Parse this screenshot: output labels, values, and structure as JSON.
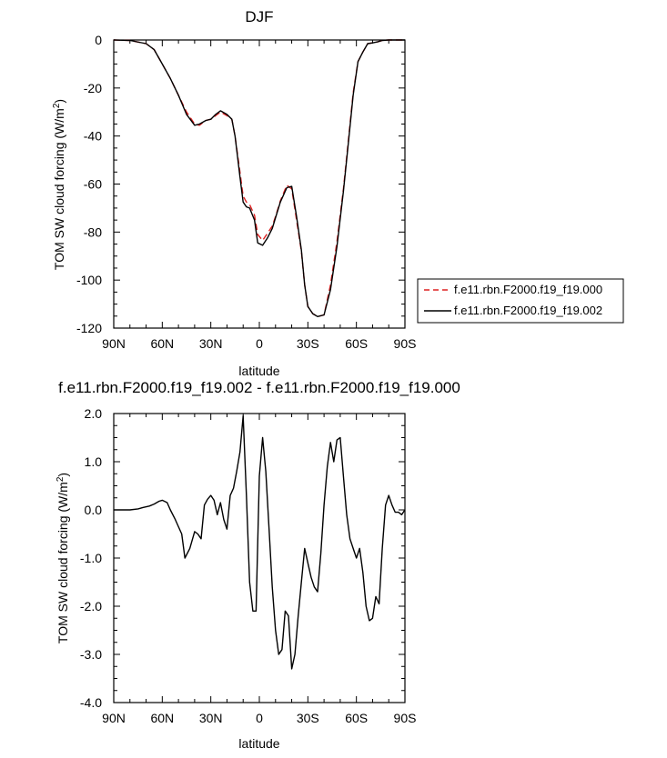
{
  "chart_data": [
    {
      "type": "line",
      "title": "DJF",
      "xlabel": "latitude",
      "ylabel": "TOM SW cloud forcing (W/m",
      "ylabel_sup": "2",
      "ylabel_close": ")",
      "xlim": [
        90,
        -90
      ],
      "ylim": [
        -120,
        0
      ],
      "xticks": [
        {
          "value": 90,
          "label": "90N"
        },
        {
          "value": 60,
          "label": "60N"
        },
        {
          "value": 30,
          "label": "30N"
        },
        {
          "value": 0,
          "label": "0"
        },
        {
          "value": -30,
          "label": "30S"
        },
        {
          "value": -60,
          "label": "60S"
        },
        {
          "value": -90,
          "label": "90S"
        }
      ],
      "yticks": [
        {
          "value": 0,
          "label": "0"
        },
        {
          "value": -20,
          "label": "-20"
        },
        {
          "value": -40,
          "label": "-40"
        },
        {
          "value": -60,
          "label": "-60"
        },
        {
          "value": -80,
          "label": "-80"
        },
        {
          "value": -100,
          "label": "-100"
        },
        {
          "value": -120,
          "label": "-120"
        }
      ],
      "legend_position": "right",
      "series": [
        {
          "name": "f.e11.rbn.F2000.f19_f19.000",
          "color": "#dd2020",
          "dash": "dashed",
          "x": [
            90,
            80,
            70,
            65,
            60,
            55,
            50,
            45,
            40,
            37,
            33,
            30,
            27,
            24,
            20,
            17,
            15,
            12,
            10,
            8,
            6,
            3,
            1,
            -2,
            -5,
            -8,
            -10,
            -13,
            -17,
            -20,
            -23,
            -26,
            -28,
            -30,
            -33,
            -36,
            -40,
            -44,
            -48,
            -52,
            -55,
            -58,
            -61,
            -64,
            -67,
            -70,
            -73,
            -76,
            -80,
            -85,
            -90
          ],
          "y": [
            0,
            -0.2,
            -1.5,
            -4,
            -10,
            -16,
            -23,
            -30,
            -35,
            -35.5,
            -33.5,
            -33,
            -31.5,
            -30,
            -31.5,
            -33,
            -40,
            -55,
            -65,
            -67.5,
            -68.5,
            -73,
            -81,
            -83.5,
            -80.5,
            -77.5,
            -73.5,
            -67,
            -60.5,
            -62,
            -75,
            -88,
            -102,
            -111,
            -114,
            -115.2,
            -114.5,
            -102,
            -84,
            -62,
            -42,
            -22,
            -9,
            -5,
            -1.5,
            -1.2,
            -0.8,
            -0.2,
            0,
            0,
            0
          ]
        },
        {
          "name": "f.e11.rbn.F2000.f19_f19.002",
          "color": "#000000",
          "dash": "solid",
          "x": [
            90,
            80,
            70,
            65,
            60,
            55,
            50,
            45,
            40,
            37,
            33,
            30,
            27,
            24,
            20,
            17,
            15,
            12,
            10,
            8,
            6,
            3,
            1,
            -2,
            -5,
            -8,
            -10,
            -13,
            -17,
            -20,
            -23,
            -26,
            -28,
            -30,
            -33,
            -36,
            -40,
            -44,
            -48,
            -52,
            -55,
            -58,
            -61,
            -64,
            -67,
            -70,
            -73,
            -76,
            -80,
            -85,
            -90
          ],
          "y": [
            0,
            -0.2,
            -1.5,
            -4,
            -10,
            -16,
            -23,
            -31,
            -35.5,
            -35,
            -33.5,
            -33,
            -31,
            -29.5,
            -31,
            -33,
            -40,
            -57,
            -67.5,
            -69.5,
            -70,
            -75,
            -84.5,
            -85.5,
            -82.5,
            -78.5,
            -74,
            -67.5,
            -61.5,
            -61,
            -73.5,
            -87.5,
            -102,
            -111,
            -114,
            -115.2,
            -114.5,
            -104,
            -86,
            -63,
            -43,
            -23,
            -9,
            -5,
            -1.5,
            -1.2,
            -0.8,
            -0.2,
            0,
            0,
            0
          ]
        }
      ]
    },
    {
      "type": "line",
      "title": "f.e11.rbn.F2000.f19_f19.002 - f.e11.rbn.F2000.f19_f19.000",
      "xlabel": "latitude",
      "ylabel": "TOM SW cloud forcing (W/m",
      "ylabel_sup": "2",
      "ylabel_close": ")",
      "xlim": [
        90,
        -90
      ],
      "ylim": [
        -4.0,
        2.0
      ],
      "xticks": [
        {
          "value": 90,
          "label": "90N"
        },
        {
          "value": 60,
          "label": "60N"
        },
        {
          "value": 30,
          "label": "30N"
        },
        {
          "value": 0,
          "label": "0"
        },
        {
          "value": -30,
          "label": "30S"
        },
        {
          "value": -60,
          "label": "60S"
        },
        {
          "value": -90,
          "label": "90S"
        }
      ],
      "yticks": [
        {
          "value": 2.0,
          "label": "2.0"
        },
        {
          "value": 1.0,
          "label": "1.0"
        },
        {
          "value": 0.0,
          "label": "0.0"
        },
        {
          "value": -1.0,
          "label": "-1.0"
        },
        {
          "value": -2.0,
          "label": "-2.0"
        },
        {
          "value": -3.0,
          "label": "-3.0"
        },
        {
          "value": -4.0,
          "label": "-4.0"
        }
      ],
      "series": [
        {
          "color": "#000000",
          "dash": "solid",
          "x": [
            90,
            80,
            75,
            72,
            68,
            65,
            62,
            60,
            57,
            55,
            52,
            50,
            48,
            46,
            43,
            40,
            38,
            36,
            34,
            32,
            30,
            28,
            26,
            24,
            22,
            20,
            18,
            16,
            14,
            12,
            10,
            8,
            6,
            4,
            2,
            0,
            -2,
            -4,
            -6,
            -8,
            -10,
            -12,
            -14,
            -16,
            -18,
            -20,
            -22,
            -24,
            -26,
            -28,
            -30,
            -32,
            -34,
            -36,
            -38,
            -40,
            -42,
            -44,
            -46,
            -48,
            -50,
            -52,
            -54,
            -56,
            -58,
            -60,
            -62,
            -64,
            -66,
            -68,
            -70,
            -72,
            -74,
            -76,
            -78,
            -80,
            -82,
            -84,
            -86,
            -88,
            -90
          ],
          "y": [
            0,
            0,
            0.02,
            0.05,
            0.08,
            0.12,
            0.18,
            0.2,
            0.15,
            0.0,
            -0.2,
            -0.35,
            -0.5,
            -1.0,
            -0.8,
            -0.45,
            -0.5,
            -0.6,
            0.1,
            0.22,
            0.3,
            0.2,
            -0.1,
            0.15,
            -0.2,
            -0.4,
            0.3,
            0.45,
            0.8,
            1.2,
            1.95,
            0.3,
            -1.5,
            -2.1,
            -2.1,
            0.7,
            1.5,
            0.8,
            -0.4,
            -1.6,
            -2.5,
            -3.0,
            -2.9,
            -2.1,
            -2.2,
            -3.3,
            -3.0,
            -2.2,
            -1.5,
            -0.8,
            -1.1,
            -1.4,
            -1.6,
            -1.7,
            -0.9,
            0.1,
            0.9,
            1.4,
            1.0,
            1.45,
            1.5,
            0.7,
            -0.1,
            -0.6,
            -0.8,
            -1.0,
            -0.8,
            -1.3,
            -2.0,
            -2.3,
            -2.25,
            -1.8,
            -1.95,
            -0.8,
            0.1,
            0.3,
            0.1,
            -0.05,
            -0.05,
            -0.1,
            0.0
          ]
        }
      ]
    }
  ]
}
